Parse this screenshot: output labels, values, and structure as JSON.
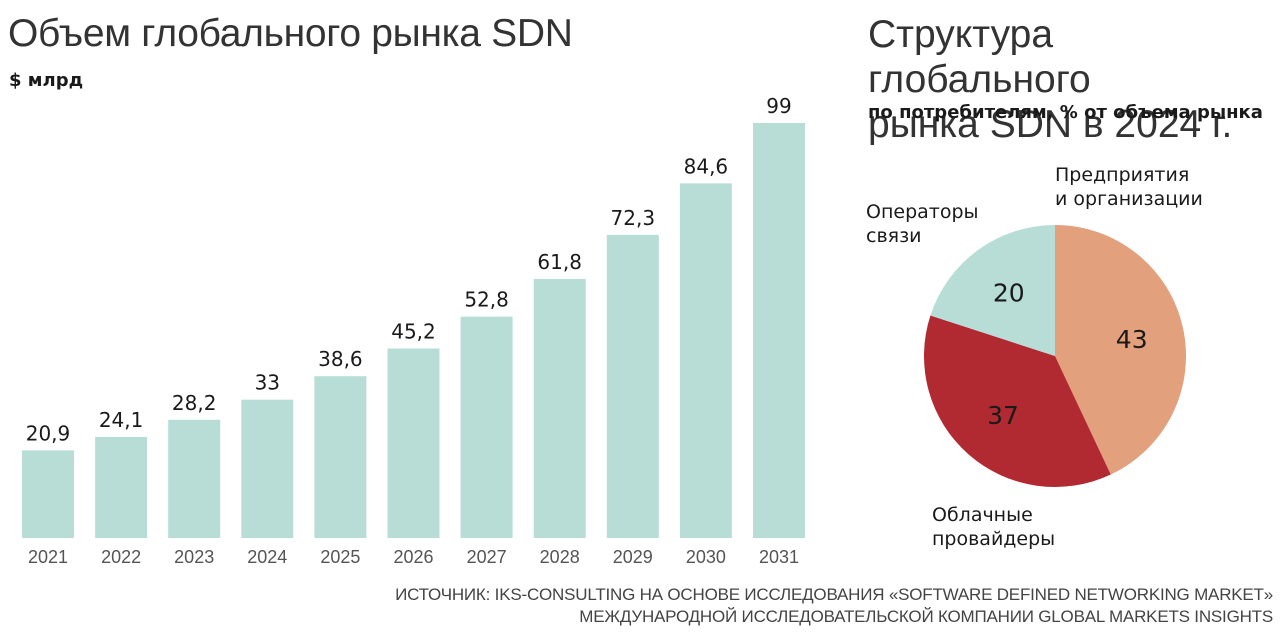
{
  "bar_title": "Объем глобального рынка SDN",
  "bar_subtitle": "$ млрд",
  "pie_title_line1": "Структура глобального",
  "pie_title_line2": "рынка SDN в 2024 г.",
  "pie_subtitle": "по потребителям, % от объема рынка",
  "source_line1": "ИСТОЧНИК: IKS-CONSULTING НА ОСНОВЕ ИССЛЕДОВАНИЯ «SOFTWARE DEFINED NETWORKING MARKET»",
  "source_line2": "МЕЖДУНАРОДНОЙ ИССЛЕДОВАТЕЛЬСКОЙ КОМПАНИИ GLOBAL MARKETS INSIGHTS",
  "pie_labels": {
    "enterprises_line1": "Предприятия",
    "enterprises_line2": "и организации",
    "operators_line1": "Операторы",
    "operators_line2": "связи",
    "cloud_line1": "Облачные",
    "cloud_line2": "провайдеры"
  },
  "colors": {
    "bar": "#b8ddd7",
    "enterprises": "#e2a07c",
    "cloud": "#b22a31",
    "operators": "#b8ddd7"
  },
  "chart_data": [
    {
      "type": "bar",
      "title": "Объем глобального рынка SDN",
      "ylabel": "$ млрд",
      "categories": [
        "2021",
        "2022",
        "2023",
        "2024",
        "2025",
        "2026",
        "2027",
        "2028",
        "2029",
        "2030",
        "2031"
      ],
      "values": [
        20.9,
        24.1,
        28.2,
        33,
        38.6,
        45.2,
        52.8,
        61.8,
        72.3,
        84.6,
        99
      ],
      "value_labels": [
        "20,9",
        "24,1",
        "28,2",
        "33",
        "38,6",
        "45,2",
        "52,8",
        "61,8",
        "72,3",
        "84,6",
        "99"
      ],
      "ylim": [
        0,
        99
      ],
      "grid": false,
      "legend": "none"
    },
    {
      "type": "pie",
      "title": "Структура глобального рынка SDN в 2024 г.",
      "subtitle": "по потребителям, % от объема рынка",
      "slices": [
        {
          "name": "Предприятия и организации",
          "value": 43,
          "label": "43"
        },
        {
          "name": "Облачные провайдеры",
          "value": 37,
          "label": "37"
        },
        {
          "name": "Операторы связи",
          "value": 20,
          "label": "20"
        }
      ]
    }
  ]
}
